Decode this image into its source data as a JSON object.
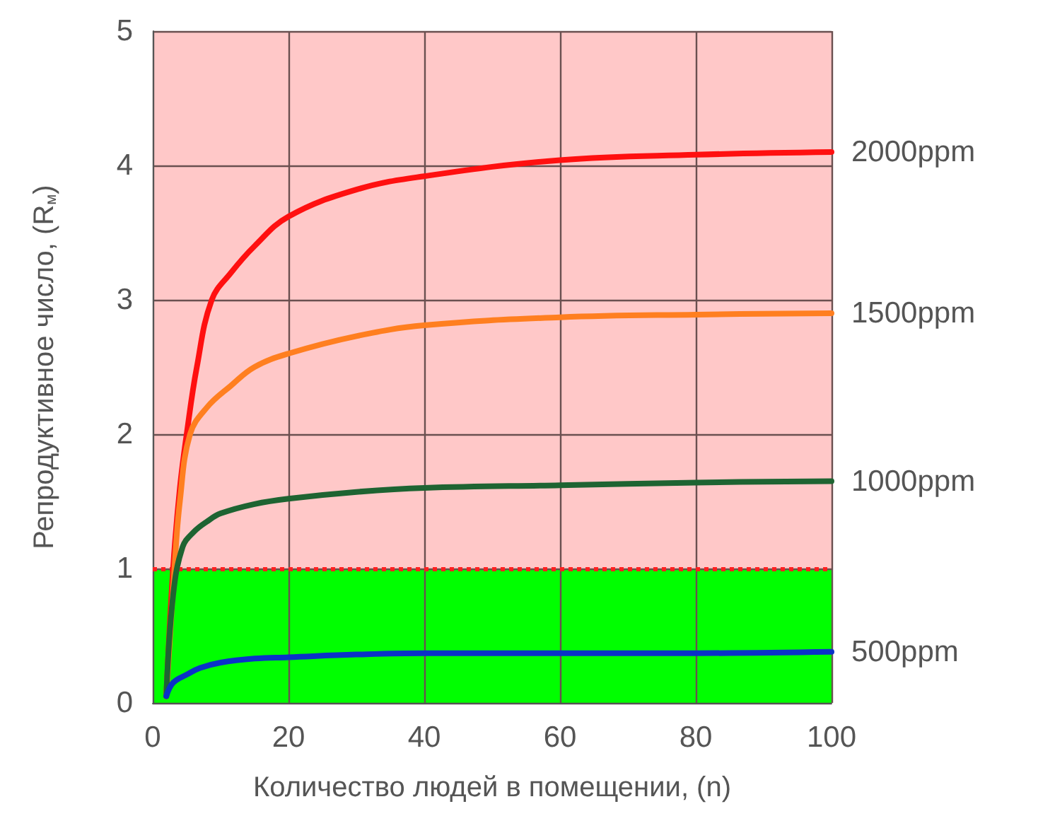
{
  "chart_data": {
    "type": "line",
    "xlabel": "Количество людей в помещении, (n)",
    "ylabel": "Репродуктивное число, (R$_{м}$)",
    "xlim": [
      0,
      100
    ],
    "xticks": [
      0,
      20,
      40,
      60,
      80,
      100
    ],
    "ylim": [
      0,
      5
    ],
    "yticks": [
      0,
      1,
      2,
      3,
      4,
      5
    ],
    "grid": true,
    "legend": false,
    "marker": "none",
    "line_style": "solid",
    "bands": [
      {
        "axis": "y",
        "from": 0,
        "to": 1,
        "color": "#00ff00"
      },
      {
        "axis": "y",
        "from": 1,
        "to": 5,
        "color": "#ffc8c8"
      }
    ],
    "ref_lines": [
      {
        "axis": "y",
        "value": 1,
        "color": "#ff2020",
        "line_style": "dotted"
      }
    ],
    "series": [
      {
        "name": "2000ppm",
        "color": "#ff1010",
        "x": [
          2,
          3,
          4,
          5,
          6.5,
          8.7,
          11.5,
          15,
          20,
          30,
          40,
          60,
          80,
          100
        ],
        "values": [
          0.05,
          1.0,
          1.6,
          2.0,
          2.5,
          3.0,
          3.2,
          3.4,
          3.62,
          3.82,
          3.92,
          4.04,
          4.08,
          4.1
        ]
      },
      {
        "name": "1500ppm",
        "color": "#ff7f20",
        "x": [
          2,
          3.2,
          4,
          5.5,
          8,
          11.5,
          15,
          20,
          30,
          40,
          60,
          80,
          100
        ],
        "values": [
          0.05,
          1.0,
          1.5,
          2.0,
          2.2,
          2.36,
          2.5,
          2.6,
          2.73,
          2.81,
          2.87,
          2.89,
          2.9
        ]
      },
      {
        "name": "1000ppm",
        "color": "#1e6432",
        "x": [
          2,
          3,
          4.4,
          6,
          8,
          10,
          15,
          20,
          30,
          40,
          60,
          80,
          100
        ],
        "values": [
          0.05,
          0.8,
          1.16,
          1.27,
          1.35,
          1.41,
          1.48,
          1.52,
          1.57,
          1.6,
          1.62,
          1.64,
          1.65
        ]
      },
      {
        "name": "500ppm",
        "color": "#0a32c8",
        "x": [
          2,
          3,
          5,
          7,
          10,
          15,
          20,
          30,
          40,
          60,
          80,
          100
        ],
        "values": [
          0.05,
          0.15,
          0.21,
          0.26,
          0.3,
          0.33,
          0.34,
          0.36,
          0.37,
          0.37,
          0.37,
          0.38
        ]
      }
    ]
  }
}
